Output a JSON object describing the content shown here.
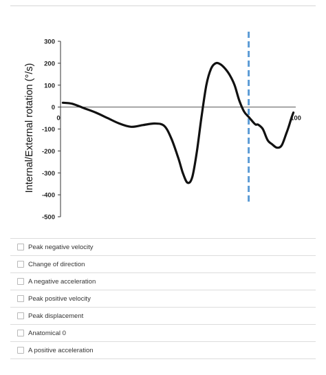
{
  "chart_data": {
    "type": "line",
    "ylabel": "Internal/External rotation (°/s)",
    "xlabel": "",
    "title": "",
    "ylim": [
      -500,
      300
    ],
    "xlim": [
      0,
      100
    ],
    "yticks": [
      300,
      200,
      100,
      0,
      -100,
      -200,
      -300,
      -400,
      -500
    ],
    "xticks": [
      0,
      100
    ],
    "grid": false,
    "series": [
      {
        "color": "#111111",
        "x": [
          1,
          5,
          10,
          15,
          20,
          25,
          30,
          35,
          40,
          44,
          47,
          50,
          52,
          54,
          56,
          58,
          60,
          62,
          64,
          66,
          68,
          70,
          72,
          74,
          76,
          78,
          80,
          82,
          83,
          84,
          86,
          88,
          90,
          92,
          94,
          96,
          97,
          98,
          99
        ],
        "values": [
          20,
          15,
          -5,
          -25,
          -50,
          -75,
          -90,
          -82,
          -75,
          -85,
          -140,
          -230,
          -300,
          -345,
          -320,
          -200,
          -40,
          100,
          175,
          200,
          195,
          175,
          145,
          100,
          30,
          -20,
          -45,
          -70,
          -80,
          -80,
          -100,
          -150,
          -170,
          -185,
          -175,
          -120,
          -90,
          -55,
          -25
        ]
      }
    ],
    "annotations": [
      {
        "type": "vertical-dashed-line",
        "x": 80,
        "color": "#5b9bd5"
      }
    ]
  },
  "options": [
    "Peak negative velocity",
    "Change of direction",
    "A negative acceleration",
    "Peak positive velocity",
    "Peak displacement",
    "Anatomical 0",
    "A positive acceleration"
  ]
}
